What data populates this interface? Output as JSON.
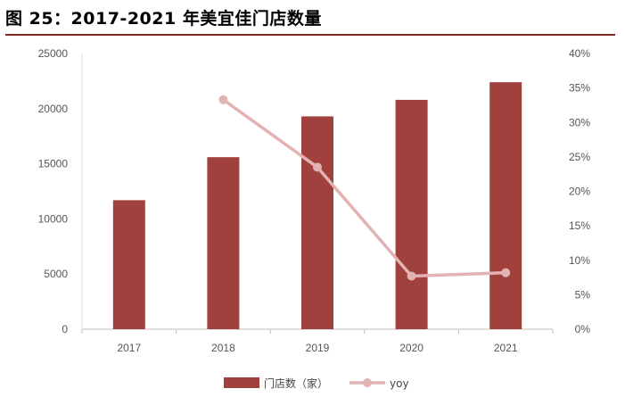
{
  "figure_title": "图 25：2017-2021 年美宜佳门店数量",
  "chart_data": {
    "type": "bar",
    "categories": [
      "2017",
      "2018",
      "2019",
      "2020",
      "2021"
    ],
    "series": [
      {
        "name": "门店数（家）",
        "type": "bar",
        "axis": "left",
        "color": "#a0413d",
        "values": [
          11700,
          15600,
          19300,
          20800,
          22400
        ]
      },
      {
        "name": "yoy",
        "type": "line",
        "axis": "right",
        "color": "#e3b3b3",
        "values": [
          null,
          0.333,
          0.235,
          0.077,
          0.082
        ]
      }
    ],
    "ylim": [
      0,
      25000
    ],
    "y_ticks": [
      "0",
      "5000",
      "10000",
      "15000",
      "20000",
      "25000"
    ],
    "y2lim": [
      0,
      0.4
    ],
    "y2_ticks": [
      "0%",
      "5%",
      "10%",
      "15%",
      "20%",
      "25%",
      "30%",
      "35%",
      "40%"
    ],
    "legend_position": "bottom",
    "grid": false
  }
}
